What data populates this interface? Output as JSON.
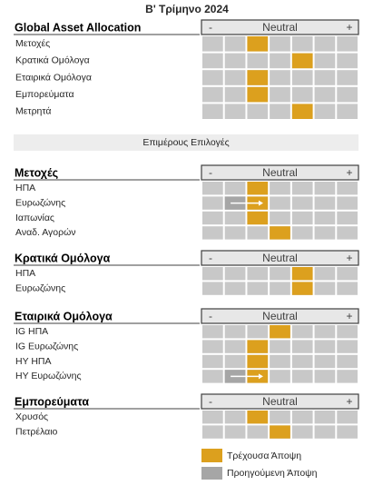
{
  "title": "Β' Τρίμηνο 2024",
  "subtitle": "Επιμέρους Επιλογές",
  "scale": {
    "minus": "-",
    "neutral": "Neutral",
    "plus": "+"
  },
  "sections": [
    {
      "title": "Global Asset Allocation",
      "rows": [
        {
          "label": "Μετοχές",
          "view": -1
        },
        {
          "label": "Κρατικά Ομόλογα",
          "view": 1
        },
        {
          "label": "Εταιρικά Ομόλογα",
          "view": -1
        },
        {
          "label": "Εμπορεύματα",
          "view": -1
        },
        {
          "label": "Μετρητά",
          "view": 1
        }
      ]
    },
    {
      "title": "Μετοχές",
      "rows": [
        {
          "label": "ΗΠΑ",
          "view": -1
        },
        {
          "label": "Ευρωζώνης",
          "view": -1,
          "previous_view": -2
        },
        {
          "label": "Ιαπωνίας",
          "view": -1
        },
        {
          "label": "Αναδ. Αγορών",
          "view": 0
        }
      ]
    },
    {
      "title": "Κρατικά Ομόλογα",
      "rows": [
        {
          "label": "ΗΠΑ",
          "view": 1
        },
        {
          "label": "Ευρωζώνης",
          "view": 1
        }
      ]
    },
    {
      "title": "Εταιρικά Ομόλογα",
      "rows": [
        {
          "label": "IG ΗΠΑ",
          "view": 0
        },
        {
          "label": "IG Ευρωζώνης",
          "view": -1
        },
        {
          "label": "HY ΗΠΑ",
          "view": -1
        },
        {
          "label": "HY Ευρωζώνης",
          "view": -1,
          "previous_view": -2
        }
      ]
    },
    {
      "title": "Εμπορεύματα",
      "rows": [
        {
          "label": "Χρυσός",
          "view": -1
        },
        {
          "label": "Πετρέλαιο",
          "view": 0
        }
      ]
    }
  ],
  "legend": {
    "current": "Τρέχουσα Άποψη",
    "previous": "Προηγούμενη Άποψη"
  }
}
